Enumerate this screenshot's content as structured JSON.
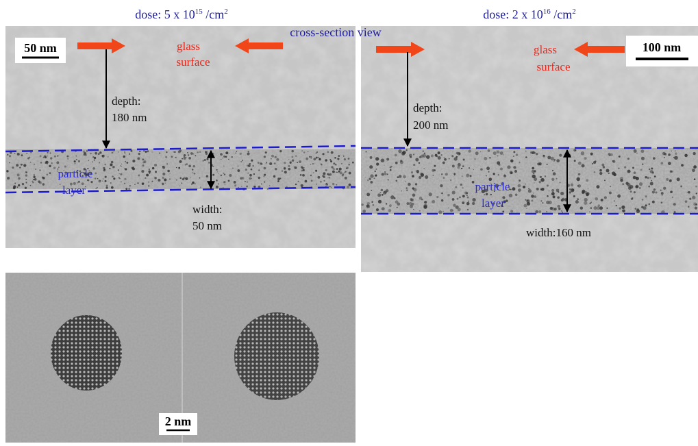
{
  "left_panel": {
    "dose": {
      "text": "dose: 5 x 10",
      "exponent": "15",
      "unit": " /cm",
      "unit_exponent": "2"
    },
    "scale_bar": "50 nm",
    "glass": "glass",
    "surface": "surface",
    "depth_label": "depth:",
    "depth_value": "180 nm",
    "particle": "particle",
    "layer": "layer",
    "width_label": "width:",
    "width_value": "50 nm"
  },
  "view_label": "cross-section view",
  "right_panel": {
    "dose": {
      "text": "dose: 2 x 10",
      "exponent": "16",
      "unit": " /cm",
      "unit_exponent": "2"
    },
    "scale_bar": "100 nm",
    "glass": "glass",
    "surface": "surface",
    "depth_label": "depth:",
    "depth_value": "200 nm",
    "particle": "particle",
    "layer": "layer",
    "width": "width:160 nm"
  },
  "bottom_panel": {
    "scale_bar": "2 nm"
  }
}
